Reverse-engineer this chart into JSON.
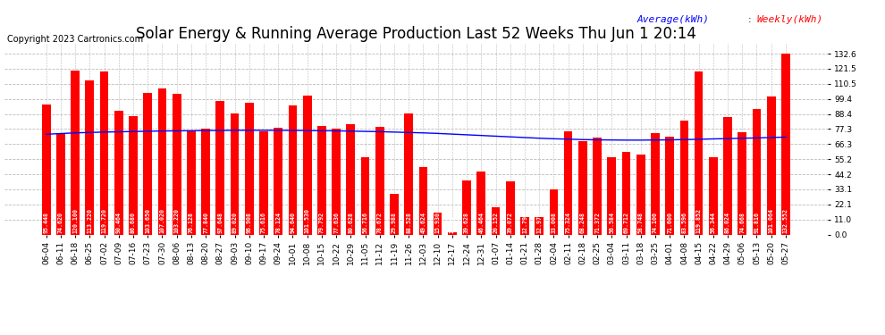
{
  "title": "Solar Energy & Running Average Production Last 52 Weeks Thu Jun 1 20:14",
  "copyright": "Copyright 2023 Cartronics.com",
  "legend_avg": "Average(kWh)",
  "legend_weekly": "Weekly(kWh)",
  "bar_color": "#ff0000",
  "avg_line_color": "#0000ff",
  "background_color": "#ffffff",
  "plot_bg_color": "#ffffff",
  "grid_color": "#bbbbbb",
  "categories": [
    "06-04",
    "06-11",
    "06-18",
    "06-25",
    "07-02",
    "07-09",
    "07-16",
    "07-23",
    "07-30",
    "08-06",
    "08-13",
    "08-20",
    "08-27",
    "09-03",
    "09-10",
    "09-17",
    "09-24",
    "10-01",
    "10-08",
    "10-15",
    "10-22",
    "10-29",
    "11-05",
    "11-12",
    "11-19",
    "11-26",
    "12-03",
    "12-10",
    "12-17",
    "12-24",
    "12-31",
    "01-07",
    "01-14",
    "01-21",
    "01-28",
    "02-04",
    "02-11",
    "02-18",
    "02-25",
    "03-04",
    "03-11",
    "03-18",
    "03-25",
    "04-01",
    "04-08",
    "04-15",
    "04-22",
    "04-29",
    "05-06",
    "05-13",
    "05-20",
    "05-27"
  ],
  "weekly_values": [
    95.448,
    74.62,
    120.1,
    113.22,
    119.72,
    90.464,
    86.68,
    103.65,
    107.02,
    103.22,
    76.128,
    77.84,
    97.648,
    89.02,
    96.908,
    75.616,
    78.124,
    94.64,
    101.53,
    79.792,
    77.636,
    80.628,
    56.716,
    78.672,
    29.988,
    88.528,
    49.624,
    15.93,
    1.928,
    39.628,
    46.464,
    20.152,
    39.072,
    12.796,
    12.976,
    33.008,
    75.324,
    68.248,
    71.372,
    56.584,
    60.712,
    58.748,
    74.1,
    71.6,
    83.596,
    119.852,
    56.344,
    86.024,
    74.668,
    91.816,
    101.064,
    132.552
  ],
  "avg_values": [
    73.5,
    74.0,
    74.5,
    74.8,
    75.1,
    75.3,
    75.5,
    75.7,
    75.9,
    76.0,
    76.1,
    76.2,
    76.3,
    76.4,
    76.4,
    76.4,
    76.4,
    76.3,
    76.2,
    76.1,
    76.0,
    75.8,
    75.6,
    75.4,
    75.1,
    74.8,
    74.5,
    74.1,
    73.6,
    73.1,
    72.6,
    72.1,
    71.6,
    71.1,
    70.6,
    70.2,
    69.9,
    69.6,
    69.4,
    69.3,
    69.2,
    69.2,
    69.3,
    69.4,
    69.6,
    69.8,
    70.1,
    70.3,
    70.6,
    70.8,
    71.1,
    71.4
  ],
  "yticks": [
    0.0,
    11.0,
    22.1,
    33.1,
    44.2,
    55.2,
    66.3,
    77.3,
    88.4,
    99.4,
    110.5,
    121.5,
    132.6
  ],
  "ylim": [
    0,
    140
  ],
  "title_fontsize": 12,
  "tick_fontsize": 6.5,
  "bar_label_fontsize": 4.8,
  "copyright_fontsize": 7,
  "legend_fontsize": 8
}
